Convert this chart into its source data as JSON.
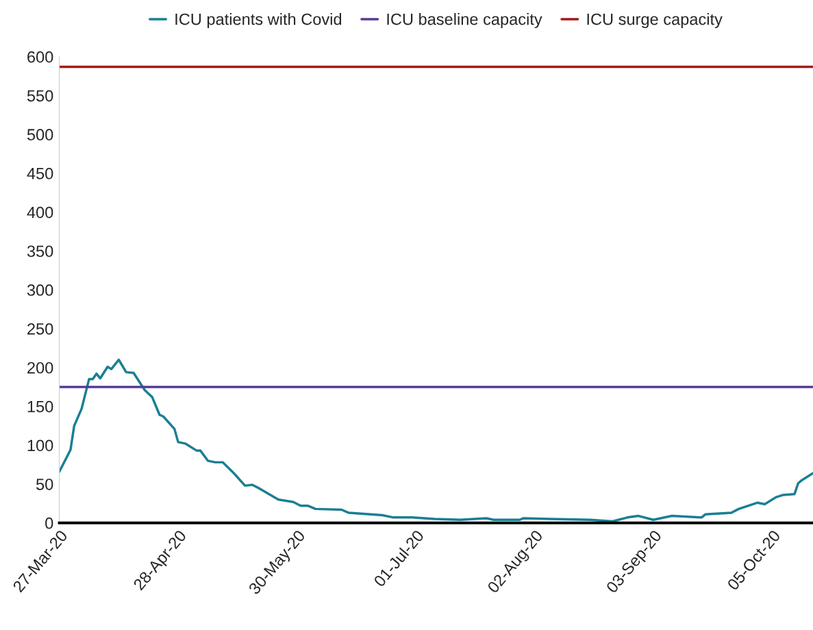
{
  "chart_data": {
    "type": "line",
    "series": [
      {
        "name": "ICU patients with Covid",
        "color": "#1a7f93",
        "x": [
          "2020-03-27",
          "2020-03-30",
          "2020-03-31",
          "2020-04-01",
          "2020-04-02",
          "2020-04-04",
          "2020-04-05",
          "2020-04-06",
          "2020-04-07",
          "2020-04-09",
          "2020-04-10",
          "2020-04-12",
          "2020-04-14",
          "2020-04-16",
          "2020-04-19",
          "2020-04-21",
          "2020-04-23",
          "2020-04-24",
          "2020-04-27",
          "2020-04-28",
          "2020-04-30",
          "2020-05-03",
          "2020-05-04",
          "2020-05-06",
          "2020-05-08",
          "2020-05-10",
          "2020-05-13",
          "2020-05-16",
          "2020-05-18",
          "2020-05-20",
          "2020-05-25",
          "2020-05-29",
          "2020-05-31",
          "2020-06-02",
          "2020-06-04",
          "2020-06-11",
          "2020-06-13",
          "2020-06-22",
          "2020-06-25",
          "2020-06-30",
          "2020-07-06",
          "2020-07-13",
          "2020-07-20",
          "2020-07-22",
          "2020-07-29",
          "2020-07-30",
          "2020-08-06",
          "2020-08-17",
          "2020-08-23",
          "2020-08-27",
          "2020-08-30",
          "2020-09-03",
          "2020-09-08",
          "2020-09-16",
          "2020-09-17",
          "2020-09-24",
          "2020-09-26",
          "2020-10-01",
          "2020-10-03",
          "2020-10-06",
          "2020-10-08",
          "2020-10-11",
          "2020-10-12",
          "2020-10-13",
          "2020-10-16"
        ],
        "values": [
          66,
          94,
          125,
          136,
          147,
          185,
          185,
          192,
          186,
          201,
          198,
          210,
          194,
          193,
          171,
          162,
          139,
          137,
          121,
          104,
          102,
          93,
          93,
          80,
          78,
          78,
          64,
          48,
          49,
          44,
          30,
          27,
          22,
          22,
          18,
          17,
          13,
          10,
          7,
          7,
          5,
          4,
          6,
          4,
          4,
          6,
          5,
          4,
          2,
          7,
          9,
          4,
          9,
          7,
          11,
          13,
          18,
          26,
          24,
          33,
          36,
          37,
          51,
          55,
          64
        ]
      },
      {
        "name": "ICU baseline capacity",
        "color": "#5b3a96",
        "x": [
          "2020-03-27",
          "2020-10-16"
        ],
        "values": [
          175,
          175
        ]
      },
      {
        "name": "ICU surge capacity",
        "color": "#a31a1a",
        "x": [
          "2020-03-27",
          "2020-10-16"
        ],
        "values": [
          587,
          587
        ]
      }
    ],
    "xlim": [
      "2020-03-27",
      "2020-10-16"
    ],
    "xticks": [
      {
        "value": "2020-03-27",
        "label": "27-Mar-20"
      },
      {
        "value": "2020-04-28",
        "label": "28-Apr-20"
      },
      {
        "value": "2020-05-30",
        "label": "30-May-20"
      },
      {
        "value": "2020-07-01",
        "label": "01-Jul-20"
      },
      {
        "value": "2020-08-02",
        "label": "02-Aug-20"
      },
      {
        "value": "2020-09-03",
        "label": "03-Sep-20"
      },
      {
        "value": "2020-10-05",
        "label": "05-Oct-20"
      }
    ],
    "ylim": [
      0,
      600
    ],
    "yticks": [
      0,
      50,
      100,
      150,
      200,
      250,
      300,
      350,
      400,
      450,
      500,
      550,
      600
    ],
    "legend": "top",
    "grid": false
  }
}
